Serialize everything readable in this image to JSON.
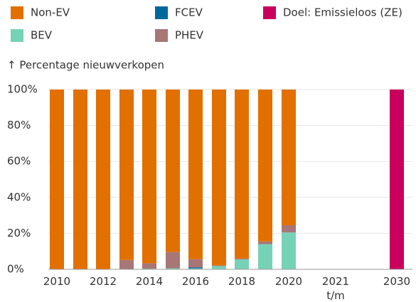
{
  "chart_data": {
    "type": "stacked_bar",
    "y_label": "↑ Percentage nieuwverkopen",
    "categories": [
      "2010",
      null,
      "2012",
      null,
      "2014",
      null,
      "2016",
      null,
      "2018",
      null,
      "2020",
      "2021 t/m 2029",
      "2030"
    ],
    "series": [
      {
        "name": "BEV",
        "color": "#76d2b6",
        "values": [
          0,
          0,
          0.1,
          0.2,
          0.4,
          0.6,
          0.5,
          1.8,
          5.5,
          14,
          20.5,
          null,
          null
        ]
      },
      {
        "name": "FCEV",
        "color": "#01689b",
        "values": [
          0,
          0,
          0,
          0,
          0,
          0,
          0.6,
          0,
          0,
          0,
          0,
          null,
          null
        ]
      },
      {
        "name": "PHEV",
        "color": "#a87676",
        "values": [
          0,
          0,
          0.1,
          5,
          3,
          9,
          4.5,
          0.3,
          0.5,
          1.5,
          4,
          null,
          null
        ]
      },
      {
        "name": "Non-EV",
        "color": "#e17000",
        "values": [
          100,
          100,
          99.8,
          94.8,
          96.6,
          90.4,
          94.4,
          97.9,
          94,
          84.5,
          75.5,
          null,
          null
        ]
      },
      {
        "name": "Doel: Emissieloos (ZE)",
        "color": "#ca005d",
        "values": [
          null,
          null,
          null,
          null,
          null,
          null,
          null,
          null,
          null,
          null,
          null,
          null,
          100
        ]
      }
    ],
    "ylim": [
      0,
      100
    ],
    "yticks": [
      {
        "value": 0,
        "label": "0%"
      },
      {
        "value": 20,
        "label": "20%"
      },
      {
        "value": 40,
        "label": "40%"
      },
      {
        "value": 60,
        "label": "60%"
      },
      {
        "value": 80,
        "label": "80%"
      },
      {
        "value": 100,
        "label": "100%"
      }
    ],
    "grid": true
  }
}
